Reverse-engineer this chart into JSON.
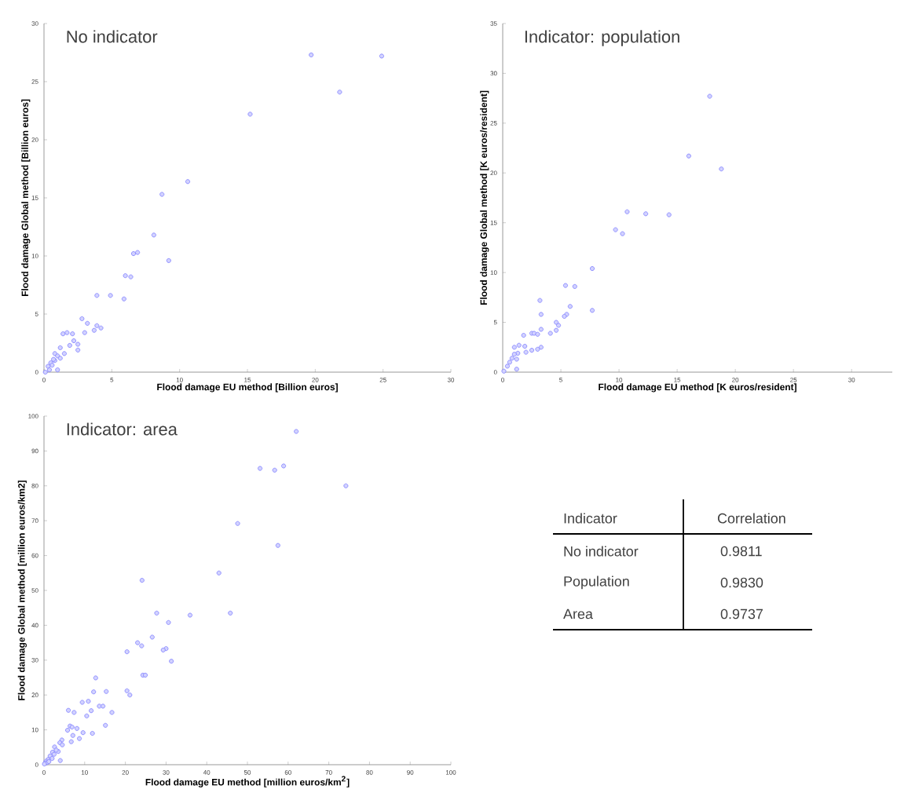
{
  "chart_data": [
    {
      "type": "scatter",
      "title": "No indicator",
      "xlabel": "Flood damage EU method [Billion euros]",
      "ylabel": "Flood damage Global method [Billion euros]",
      "color": "#7f7fff",
      "marker": "circle",
      "xlim": [
        0,
        30
      ],
      "ylim": [
        0,
        30
      ],
      "xticks": [
        0,
        5,
        10,
        15,
        20,
        25,
        30
      ],
      "yticks": [
        0,
        5,
        10,
        15,
        20,
        25,
        30
      ],
      "x": [
        19.7,
        24.9,
        21.8,
        15.2,
        10.6,
        8.7,
        8.1,
        9.2,
        6.9,
        6.6,
        6.0,
        6.4,
        3.9,
        4.9,
        5.9,
        2.8,
        3.2,
        3.9,
        4.2,
        3.7,
        3.0,
        1.4,
        1.7,
        2.1,
        2.2,
        1.9,
        2.5,
        2.5,
        1.2,
        1.5,
        0.8,
        1.0,
        1.0,
        0.5,
        0.3,
        0.6,
        0.4,
        0.1,
        0.8,
        1.2,
        0.7
      ],
      "values": [
        27.3,
        27.2,
        24.1,
        22.2,
        16.4,
        15.3,
        11.8,
        9.6,
        10.3,
        10.2,
        8.3,
        8.2,
        6.6,
        6.6,
        6.3,
        4.6,
        4.2,
        4.0,
        3.8,
        3.6,
        3.4,
        3.3,
        3.4,
        3.3,
        2.7,
        2.3,
        2.4,
        1.9,
        2.1,
        1.6,
        1.6,
        1.4,
        0.2,
        0.8,
        0.5,
        0.6,
        0.2,
        0.0,
        1.0,
        1.2,
        1.1
      ]
    },
    {
      "type": "scatter",
      "title": "Indicator: population",
      "xlabel": "Flood damage EU method [K euros/resident]",
      "ylabel": "Flood damage Global method [K euros/resident]",
      "color": "#7f7fff",
      "marker": "circle",
      "xlim": [
        0,
        33.5
      ],
      "ylim": [
        0,
        35
      ],
      "xticks": [
        0,
        5,
        10,
        15,
        20,
        25,
        30
      ],
      "yticks": [
        0,
        5,
        10,
        15,
        20,
        25,
        30,
        35
      ],
      "x": [
        17.8,
        16.0,
        18.8,
        10.7,
        12.3,
        14.3,
        9.7,
        10.3,
        7.7,
        5.4,
        6.2,
        3.2,
        3.3,
        7.7,
        5.8,
        5.5,
        5.3,
        4.6,
        4.8,
        4.1,
        4.6,
        2.5,
        2.7,
        3.0,
        3.3,
        1.8,
        3.3,
        3.0,
        2.5,
        1.9,
        1.4,
        2.0,
        1.0,
        1.3,
        1.2,
        1.2,
        0.1,
        0.6,
        0.4,
        0.8,
        1.0
      ],
      "values": [
        27.7,
        21.7,
        20.4,
        16.1,
        15.9,
        15.8,
        14.3,
        13.9,
        10.4,
        8.7,
        8.6,
        7.2,
        5.8,
        6.2,
        6.6,
        5.8,
        5.6,
        5.0,
        4.7,
        3.9,
        4.2,
        3.9,
        3.9,
        3.8,
        4.3,
        3.7,
        2.5,
        2.3,
        2.2,
        2.6,
        2.7,
        2.0,
        2.5,
        1.9,
        1.3,
        0.3,
        0.1,
        1.0,
        0.6,
        1.4,
        1.8
      ]
    },
    {
      "type": "scatter",
      "title": "Indicator: area",
      "xlabel": "Flood damage EU method [million euros/km$^{2}$]",
      "ylabel": "Flood damage Global method [million euros/km2]",
      "color": "#7f7fff",
      "marker": "circle",
      "xlim": [
        0,
        100
      ],
      "ylim": [
        0,
        100
      ],
      "xticks": [
        0,
        10,
        20,
        30,
        40,
        50,
        60,
        70,
        80,
        90,
        100
      ],
      "yticks": [
        0,
        10,
        20,
        30,
        40,
        50,
        60,
        70,
        80,
        90,
        100
      ],
      "x": [
        62.0,
        53.1,
        56.7,
        58.9,
        74.2,
        47.6,
        57.5,
        43.0,
        24.1,
        27.7,
        45.8,
        35.9,
        30.6,
        26.6,
        23.0,
        24.0,
        30.0,
        29.3,
        20.4,
        31.3,
        24.3,
        24.9,
        20.4,
        21.1,
        15.3,
        12.2,
        12.7,
        9.4,
        10.9,
        13.6,
        14.5,
        16.7,
        11.6,
        6.0,
        7.4,
        15.1,
        11.9,
        9.6,
        10.5,
        6.4,
        6.9,
        8.1,
        5.8,
        7.1,
        8.7,
        6.7,
        4.4,
        3.9,
        4.5,
        2.6,
        3.5,
        2.1,
        4.0,
        1.5,
        1.0,
        0.5,
        0.3,
        2.5,
        0.8,
        1.2,
        0.1,
        2.0,
        3.0
      ],
      "values": [
        95.6,
        85.0,
        84.5,
        85.7,
        80.0,
        69.2,
        62.9,
        55.0,
        52.9,
        43.5,
        43.5,
        42.9,
        40.8,
        36.6,
        35.0,
        34.1,
        33.3,
        32.9,
        32.4,
        29.7,
        25.7,
        25.7,
        21.2,
        20.0,
        21.0,
        20.9,
        24.9,
        17.9,
        18.2,
        16.8,
        16.8,
        15.0,
        15.5,
        15.6,
        15.0,
        11.3,
        9.0,
        9.2,
        14.0,
        11.1,
        10.8,
        10.4,
        9.9,
        8.4,
        7.5,
        6.6,
        7.1,
        6.3,
        5.7,
        5.1,
        3.8,
        3.6,
        1.2,
        2.5,
        1.5,
        1.0,
        0.5,
        3.0,
        0.6,
        0.9,
        0.2,
        1.8,
        4.2
      ]
    },
    {
      "type": "other",
      "annotations": [
        "Indicator",
        "Correlation"
      ],
      "categories": [
        "No indicator",
        "Population",
        "Area"
      ],
      "value_labels": [
        "0.9811",
        "0.9830",
        "0.9737"
      ]
    }
  ]
}
